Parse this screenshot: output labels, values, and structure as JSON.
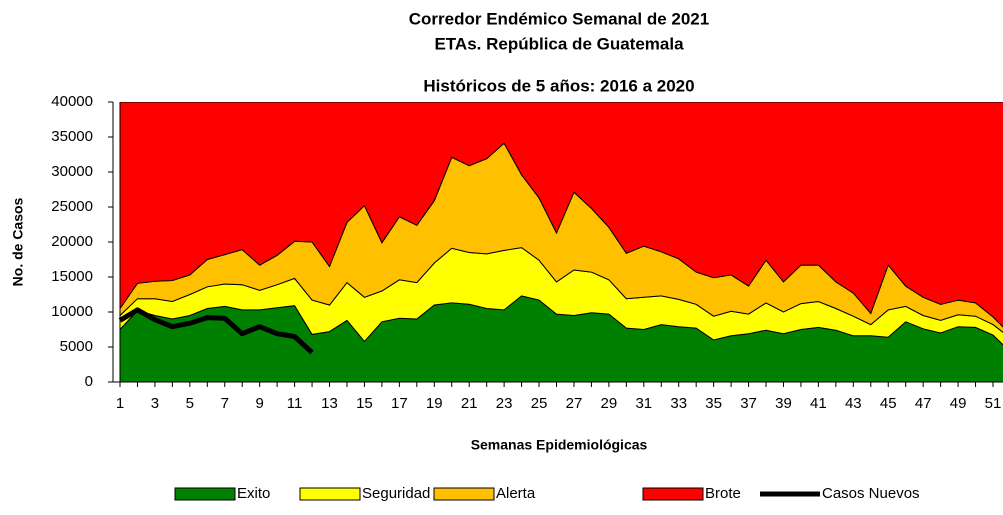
{
  "chart_data": {
    "type": "area",
    "title": [
      "Corredor Endémico Semanal de 2021",
      "ETAs.  República de Guatemala",
      "Históricos de 5 años: 2016 a 2020"
    ],
    "x_label": "Semanas Epidemiológicas",
    "y_label": "No. de Casos",
    "categories": [
      1,
      null,
      3,
      null,
      5,
      null,
      7,
      null,
      9,
      null,
      11,
      null,
      13,
      null,
      15,
      null,
      17,
      null,
      19,
      null,
      21,
      null,
      23,
      null,
      25,
      null,
      27,
      null,
      29,
      null,
      31,
      null,
      33,
      null,
      35,
      null,
      37,
      null,
      39,
      null,
      41,
      null,
      43,
      null,
      45,
      null,
      47,
      null,
      49,
      null,
      51,
      null
    ],
    "ylim": [
      0,
      40000
    ],
    "yticks": [
      0,
      5000,
      10000,
      15000,
      20000,
      25000,
      30000,
      35000,
      40000
    ],
    "stacked": true,
    "legend": "bottom",
    "series": [
      {
        "name": "Exito",
        "color": "#008000",
        "values": [
          7500,
          10200,
          9500,
          9000,
          9500,
          10500,
          10800,
          10300,
          10300,
          10600,
          10900,
          6800,
          7200,
          8800,
          5800,
          8600,
          9100,
          9000,
          11000,
          11300,
          11100,
          10500,
          10300,
          12300,
          11700,
          9700,
          9500,
          9900,
          9700,
          7700,
          7500,
          8200,
          7900,
          7700,
          6000,
          6600,
          6900,
          7400,
          6900,
          7500,
          7800,
          7400,
          6600,
          6600,
          6400,
          8600,
          7600,
          7000,
          7900,
          7800,
          6700,
          4300
        ]
      },
      {
        "name": "Seguridad",
        "color": "#ffff00",
        "values": [
          2000,
          1700,
          2400,
          2500,
          3000,
          3100,
          3200,
          3600,
          2800,
          3300,
          3900,
          4900,
          3800,
          5400,
          6300,
          4400,
          5500,
          5200,
          6000,
          7800,
          7400,
          7800,
          8500,
          6900,
          5700,
          4600,
          6500,
          5800,
          4900,
          4200,
          4600,
          4100,
          3900,
          3400,
          3400,
          3500,
          2800,
          3900,
          3100,
          3700,
          3700,
          3100,
          2800,
          1600,
          3900,
          2200,
          1900,
          1800,
          1700,
          1600,
          1500,
          2000
        ]
      },
      {
        "name": "Alerta",
        "color": "#ffc000",
        "values": [
          1000,
          2200,
          2500,
          3000,
          2800,
          3900,
          4200,
          5000,
          3600,
          4200,
          5300,
          8300,
          5500,
          8600,
          13100,
          6900,
          9000,
          8200,
          8900,
          13000,
          12400,
          13600,
          15300,
          10400,
          8900,
          7000,
          11100,
          9100,
          7500,
          6500,
          7300,
          6300,
          5800,
          4600,
          5500,
          5200,
          4000,
          6100,
          4300,
          5500,
          5200,
          3800,
          3300,
          1600,
          6400,
          2900,
          2600,
          2300,
          2100,
          1900,
          1100,
          500
        ]
      },
      {
        "name": "Brote",
        "color": "#ff0000",
        "values": [
          29500,
          25900,
          25600,
          25500,
          24700,
          22500,
          21800,
          21100,
          23300,
          21900,
          19900,
          20000,
          23500,
          17200,
          14800,
          20100,
          16400,
          17600,
          14100,
          7900,
          9100,
          8100,
          5900,
          10400,
          13700,
          18700,
          12900,
          15200,
          17900,
          21600,
          20600,
          21400,
          22400,
          24300,
          25100,
          24700,
          26300,
          22600,
          25700,
          23300,
          23300,
          25700,
          27300,
          30200,
          23300,
          26300,
          27900,
          28900,
          28300,
          28700,
          30700,
          33200
        ]
      },
      {
        "name": "Casos Nuevos",
        "color": "#000000",
        "type": "line",
        "values": [
          8800,
          10300,
          8900,
          7900,
          8400,
          9200,
          9100,
          6900,
          7900,
          6900,
          6500,
          4200,
          null,
          null,
          null,
          null,
          null,
          null,
          null,
          null,
          null,
          null,
          null,
          null,
          null,
          null,
          null,
          null,
          null,
          null,
          null,
          null,
          null,
          null,
          null,
          null,
          null,
          null,
          null,
          null,
          null,
          null,
          null,
          null,
          null,
          null,
          null,
          null,
          null,
          null,
          null,
          null
        ]
      }
    ]
  }
}
